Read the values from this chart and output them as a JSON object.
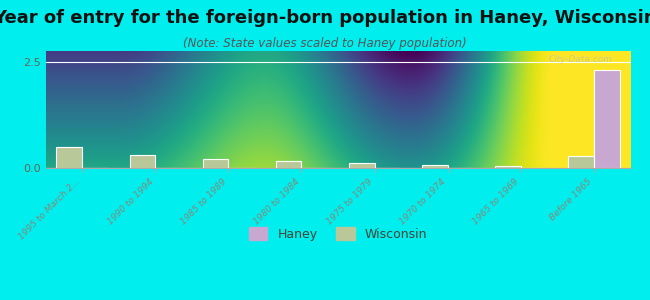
{
  "title": "Year of entry for the foreign-born population in Haney, Wisconsin",
  "subtitle": "(Note: State values scaled to Haney population)",
  "categories": [
    "1995 to March 2...",
    "1990 to 1994",
    "1985 to 1989",
    "1980 to 1984",
    "1975 to 1979",
    "1970 to 1974",
    "1965 to 1969",
    "Before 1965"
  ],
  "haney_values": [
    0,
    0,
    0,
    0,
    0,
    0,
    0,
    2.3
  ],
  "wisconsin_values": [
    0.5,
    0.3,
    0.22,
    0.16,
    0.12,
    0.07,
    0.04,
    0.28
  ],
  "haney_color": "#c8a8d0",
  "wisconsin_color": "#b8c898",
  "background_color": "#00eeee",
  "ylim": [
    0,
    2.75
  ],
  "yticks": [
    0,
    2.5
  ],
  "bar_width": 0.35,
  "title_fontsize": 13,
  "subtitle_fontsize": 8.5,
  "watermark": "City-Data.com"
}
